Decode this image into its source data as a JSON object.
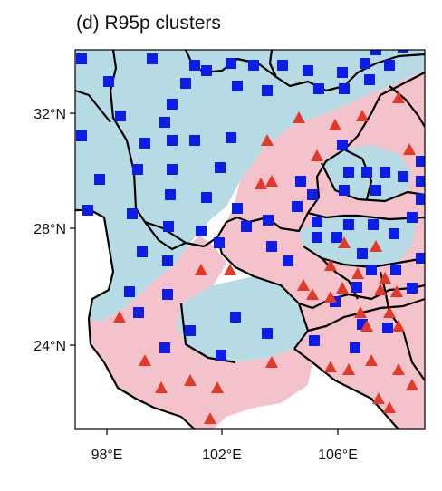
{
  "title": "(d) R95p clusters",
  "lat_labels": [
    "32°N",
    "28°N",
    "24°N"
  ],
  "lon_labels": [
    "98°E",
    "102°E",
    "106°E"
  ],
  "colors": {
    "cluster_a_fill": "#b7dbe4",
    "cluster_b_fill": "#f4c2cb",
    "square_marker": "#0b1de6",
    "triangle_marker": "#e23a28",
    "boundary": "#000000"
  },
  "legend": [],
  "icons": {
    "station_a": "blue-square",
    "station_b": "red-triangle"
  }
}
